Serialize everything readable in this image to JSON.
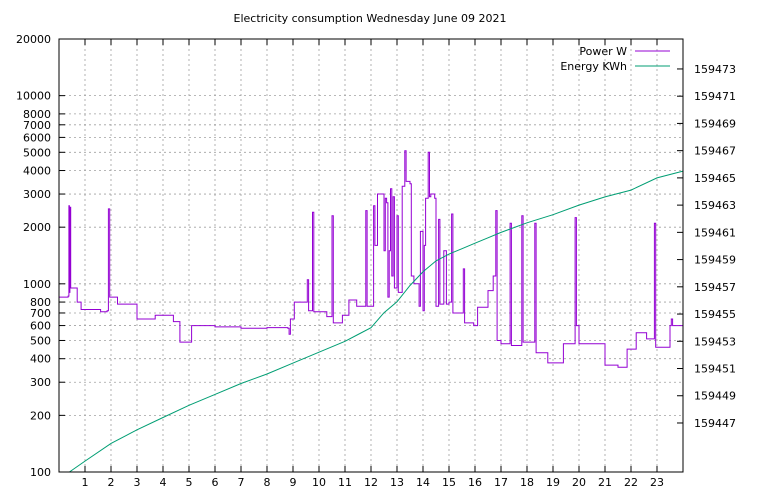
{
  "chart_data": {
    "type": "line",
    "title": "Electricity consumption Wednesday June 09 2021",
    "x_ticks": [
      1,
      2,
      3,
      4,
      5,
      6,
      7,
      8,
      9,
      10,
      11,
      12,
      13,
      14,
      15,
      16,
      17,
      18,
      19,
      20,
      21,
      22,
      23
    ],
    "xlim": [
      0,
      24
    ],
    "y_left": {
      "scale": "log",
      "lim": [
        100,
        20000
      ],
      "ticks": [
        100,
        200,
        300,
        400,
        500,
        600,
        700,
        800,
        1000,
        2000,
        3000,
        4000,
        5000,
        6000,
        7000,
        8000,
        10000,
        20000
      ],
      "tick_labels": [
        "100",
        "200",
        "300",
        "400",
        "500",
        "600",
        "700",
        "800",
        "1000",
        "2000",
        "3000",
        "4000",
        "5000",
        "6000",
        "7000",
        "8000",
        "10000",
        "20000"
      ]
    },
    "y_right": {
      "scale": "linear",
      "lim": [
        159443.4,
        159475.2
      ],
      "ticks": [
        159447,
        159449,
        159451,
        159453,
        159455,
        159457,
        159459,
        159461,
        159463,
        159465,
        159467,
        159469,
        159471,
        159473
      ],
      "tick_labels": [
        "159447",
        "159449",
        "159451",
        "159453",
        "159455",
        "159457",
        "159459",
        "159461",
        "159463",
        "159465",
        "159467",
        "159469",
        "159471",
        "159473"
      ]
    },
    "grid": true,
    "legend_position": "top-right",
    "series": [
      {
        "name": "Power W",
        "axis": "left",
        "color": "#9400d3",
        "style": "step",
        "points": [
          [
            0.0,
            850
          ],
          [
            0.35,
            860
          ],
          [
            0.38,
            2600
          ],
          [
            0.4,
            900
          ],
          [
            0.42,
            2550
          ],
          [
            0.45,
            950
          ],
          [
            0.65,
            950
          ],
          [
            0.7,
            800
          ],
          [
            0.85,
            730
          ],
          [
            1.6,
            710
          ],
          [
            1.85,
            720
          ],
          [
            1.9,
            2500
          ],
          [
            1.95,
            850
          ],
          [
            2.25,
            780
          ],
          [
            3.0,
            650
          ],
          [
            3.7,
            680
          ],
          [
            4.4,
            630
          ],
          [
            4.65,
            490
          ],
          [
            5.1,
            600
          ],
          [
            6.0,
            590
          ],
          [
            7.0,
            580
          ],
          [
            8.0,
            585
          ],
          [
            8.8,
            580
          ],
          [
            8.85,
            540
          ],
          [
            8.9,
            650
          ],
          [
            9.05,
            800
          ],
          [
            9.55,
            1050
          ],
          [
            9.6,
            720
          ],
          [
            9.75,
            2400
          ],
          [
            9.8,
            710
          ],
          [
            10.1,
            710
          ],
          [
            10.3,
            670
          ],
          [
            10.5,
            2300
          ],
          [
            10.55,
            620
          ],
          [
            10.9,
            680
          ],
          [
            11.15,
            820
          ],
          [
            11.45,
            760
          ],
          [
            11.8,
            2450
          ],
          [
            11.85,
            760
          ],
          [
            12.1,
            2600
          ],
          [
            12.15,
            1600
          ],
          [
            12.25,
            3000
          ],
          [
            12.5,
            1500
          ],
          [
            12.55,
            2850
          ],
          [
            12.6,
            2700
          ],
          [
            12.65,
            850
          ],
          [
            12.7,
            1500
          ],
          [
            12.75,
            3200
          ],
          [
            12.8,
            1100
          ],
          [
            12.85,
            2900
          ],
          [
            12.9,
            950
          ],
          [
            13.0,
            2300
          ],
          [
            13.05,
            900
          ],
          [
            13.2,
            3300
          ],
          [
            13.3,
            5100
          ],
          [
            13.35,
            3500
          ],
          [
            13.5,
            3400
          ],
          [
            13.55,
            1100
          ],
          [
            13.65,
            1000
          ],
          [
            13.85,
            760
          ],
          [
            13.9,
            1900
          ],
          [
            14.0,
            720
          ],
          [
            14.05,
            1600
          ],
          [
            14.1,
            2850
          ],
          [
            14.2,
            5000
          ],
          [
            14.25,
            2900
          ],
          [
            14.3,
            3000
          ],
          [
            14.45,
            2850
          ],
          [
            14.5,
            760
          ],
          [
            14.6,
            2200
          ],
          [
            14.65,
            780
          ],
          [
            14.8,
            1500
          ],
          [
            14.9,
            780
          ],
          [
            15.0,
            800
          ],
          [
            15.1,
            2350
          ],
          [
            15.15,
            700
          ],
          [
            15.5,
            700
          ],
          [
            15.55,
            1200
          ],
          [
            15.6,
            620
          ],
          [
            15.95,
            600
          ],
          [
            16.1,
            750
          ],
          [
            16.5,
            920
          ],
          [
            16.7,
            1100
          ],
          [
            16.8,
            2450
          ],
          [
            16.85,
            500
          ],
          [
            17.0,
            480
          ],
          [
            17.35,
            2100
          ],
          [
            17.4,
            470
          ],
          [
            17.8,
            2300
          ],
          [
            17.85,
            490
          ],
          [
            18.3,
            2100
          ],
          [
            18.35,
            430
          ],
          [
            18.8,
            380
          ],
          [
            19.4,
            480
          ],
          [
            19.85,
            2250
          ],
          [
            19.9,
            600
          ],
          [
            20.0,
            480
          ],
          [
            21.0,
            370
          ],
          [
            21.5,
            360
          ],
          [
            21.85,
            450
          ],
          [
            22.2,
            550
          ],
          [
            22.6,
            510
          ],
          [
            22.9,
            2100
          ],
          [
            22.95,
            460
          ],
          [
            23.5,
            600
          ],
          [
            23.55,
            650
          ],
          [
            23.6,
            600
          ],
          [
            24.0,
            600
          ]
        ]
      },
      {
        "name": "Energy KWh",
        "axis": "right",
        "color": "#009e73",
        "style": "line",
        "points": [
          [
            0.4,
            159443.4
          ],
          [
            1.0,
            159444.2
          ],
          [
            2.0,
            159445.5
          ],
          [
            3.0,
            159446.5
          ],
          [
            4.0,
            159447.4
          ],
          [
            5.0,
            159448.3
          ],
          [
            6.0,
            159449.1
          ],
          [
            7.0,
            159449.9
          ],
          [
            8.0,
            159450.6
          ],
          [
            9.0,
            159451.4
          ],
          [
            10.0,
            159452.2
          ],
          [
            11.0,
            159453.0
          ],
          [
            11.5,
            159453.5
          ],
          [
            12.0,
            159454.0
          ],
          [
            12.5,
            159455.1
          ],
          [
            13.0,
            159455.9
          ],
          [
            13.5,
            159457.1
          ],
          [
            14.0,
            159458.1
          ],
          [
            14.5,
            159458.9
          ],
          [
            15.0,
            159459.4
          ],
          [
            15.5,
            159459.8
          ],
          [
            16.0,
            159460.2
          ],
          [
            16.5,
            159460.6
          ],
          [
            17.0,
            159461.0
          ],
          [
            18.0,
            159461.7
          ],
          [
            19.0,
            159462.3
          ],
          [
            20.0,
            159463.0
          ],
          [
            21.0,
            159463.6
          ],
          [
            22.0,
            159464.1
          ],
          [
            23.0,
            159465.0
          ],
          [
            24.0,
            159465.5
          ]
        ]
      }
    ]
  }
}
